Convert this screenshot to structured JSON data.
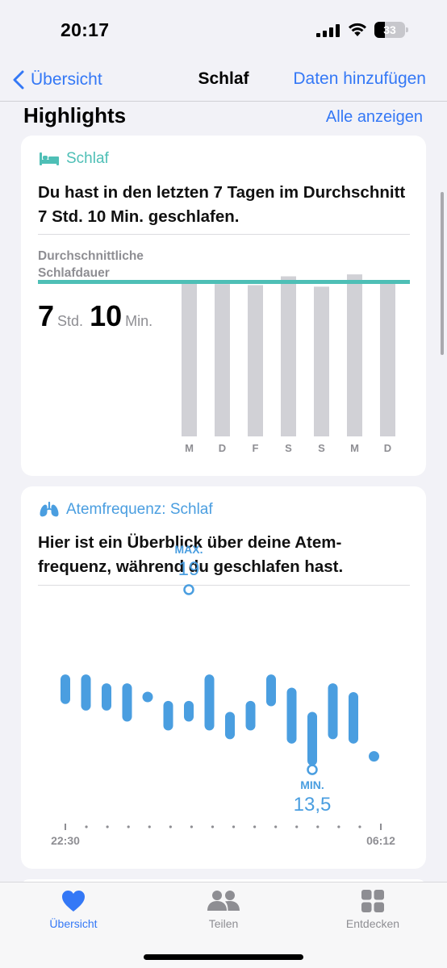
{
  "status_bar": {
    "time": "20:17",
    "battery_level": "33",
    "battery_fraction": 0.33,
    "icons": [
      "cellular-signal-icon",
      "wifi-icon",
      "battery-icon"
    ]
  },
  "nav": {
    "back_label": "Übersicht",
    "title": "Schlaf",
    "action_label": "Daten hinzufügen",
    "accent": "#3478f6"
  },
  "section": {
    "title": "Highlights",
    "show_all": "Alle anzeigen"
  },
  "sleep_card": {
    "title": "Schlaf",
    "icon": "bed-icon",
    "accent": "#4ebfb6",
    "text": "Du hast in den letzten 7 Tagen im Durchschnitt 7 Std. 10 Min. geschlafen.",
    "avg_label_line1": "Durchschnittliche",
    "avg_label_line2": "Schlafdauer",
    "avg_hours": "7",
    "hours_unit": "Std.",
    "avg_minutes": "10",
    "minutes_unit": "Min."
  },
  "respiratory_card": {
    "title": "Atemfrequenz: Schlaf",
    "icon": "lungs-icon",
    "accent": "#4a9ee0",
    "text_line1": "Hier ist ein Überblick über deine Atem-",
    "text_line2": "frequenz, während du geschlafen hast."
  },
  "chart_data": [
    {
      "type": "bar",
      "categories": [
        "M",
        "D",
        "F",
        "S",
        "S",
        "M",
        "D"
      ],
      "values": [
        7.12,
        7.07,
        7.02,
        7.43,
        6.95,
        7.52,
        7.25
      ],
      "average": 7.17,
      "ylim": [
        0,
        7.6
      ],
      "bar_color": "#d1d1d6",
      "average_line_color": "#4ebfb6"
    },
    {
      "type": "range",
      "x_start_label": "22:30",
      "x_end_label": "06:12",
      "max_label": "MAX.",
      "max_value": "19",
      "min_label": "MIN.",
      "min_value": "13,5",
      "ylim": [
        13.5,
        19
      ],
      "color": "#4a9ee0",
      "series": [
        {
          "low": 16.7,
          "high": 17.6
        },
        {
          "low": 16.4,
          "high": 17.6
        },
        {
          "low": 16.4,
          "high": 17.2
        },
        {
          "low": 15.9,
          "high": 17.2
        },
        {
          "low": 16.8,
          "high": 16.8
        },
        {
          "low": 15.5,
          "high": 16.4
        },
        {
          "low": 15.9,
          "high": 16.4
        },
        {
          "low": 15.5,
          "high": 17.6
        },
        {
          "low": 15.1,
          "high": 15.9
        },
        {
          "low": 15.5,
          "high": 16.4
        },
        {
          "low": 16.6,
          "high": 17.6
        },
        {
          "low": 14.9,
          "high": 17.0
        },
        {
          "low": 13.9,
          "high": 15.9
        },
        {
          "low": 15.1,
          "high": 17.2
        },
        {
          "low": 14.9,
          "high": 16.8
        },
        {
          "low": 14.1,
          "high": 14.1
        }
      ],
      "max_point_index": 6,
      "min_point_index": 12
    }
  ],
  "tab_bar": {
    "tabs": [
      {
        "label": "Übersicht",
        "icon": "heart-icon",
        "active": true
      },
      {
        "label": "Teilen",
        "icon": "people-icon",
        "active": false
      },
      {
        "label": "Entdecken",
        "icon": "grid-icon",
        "active": false
      }
    ]
  }
}
